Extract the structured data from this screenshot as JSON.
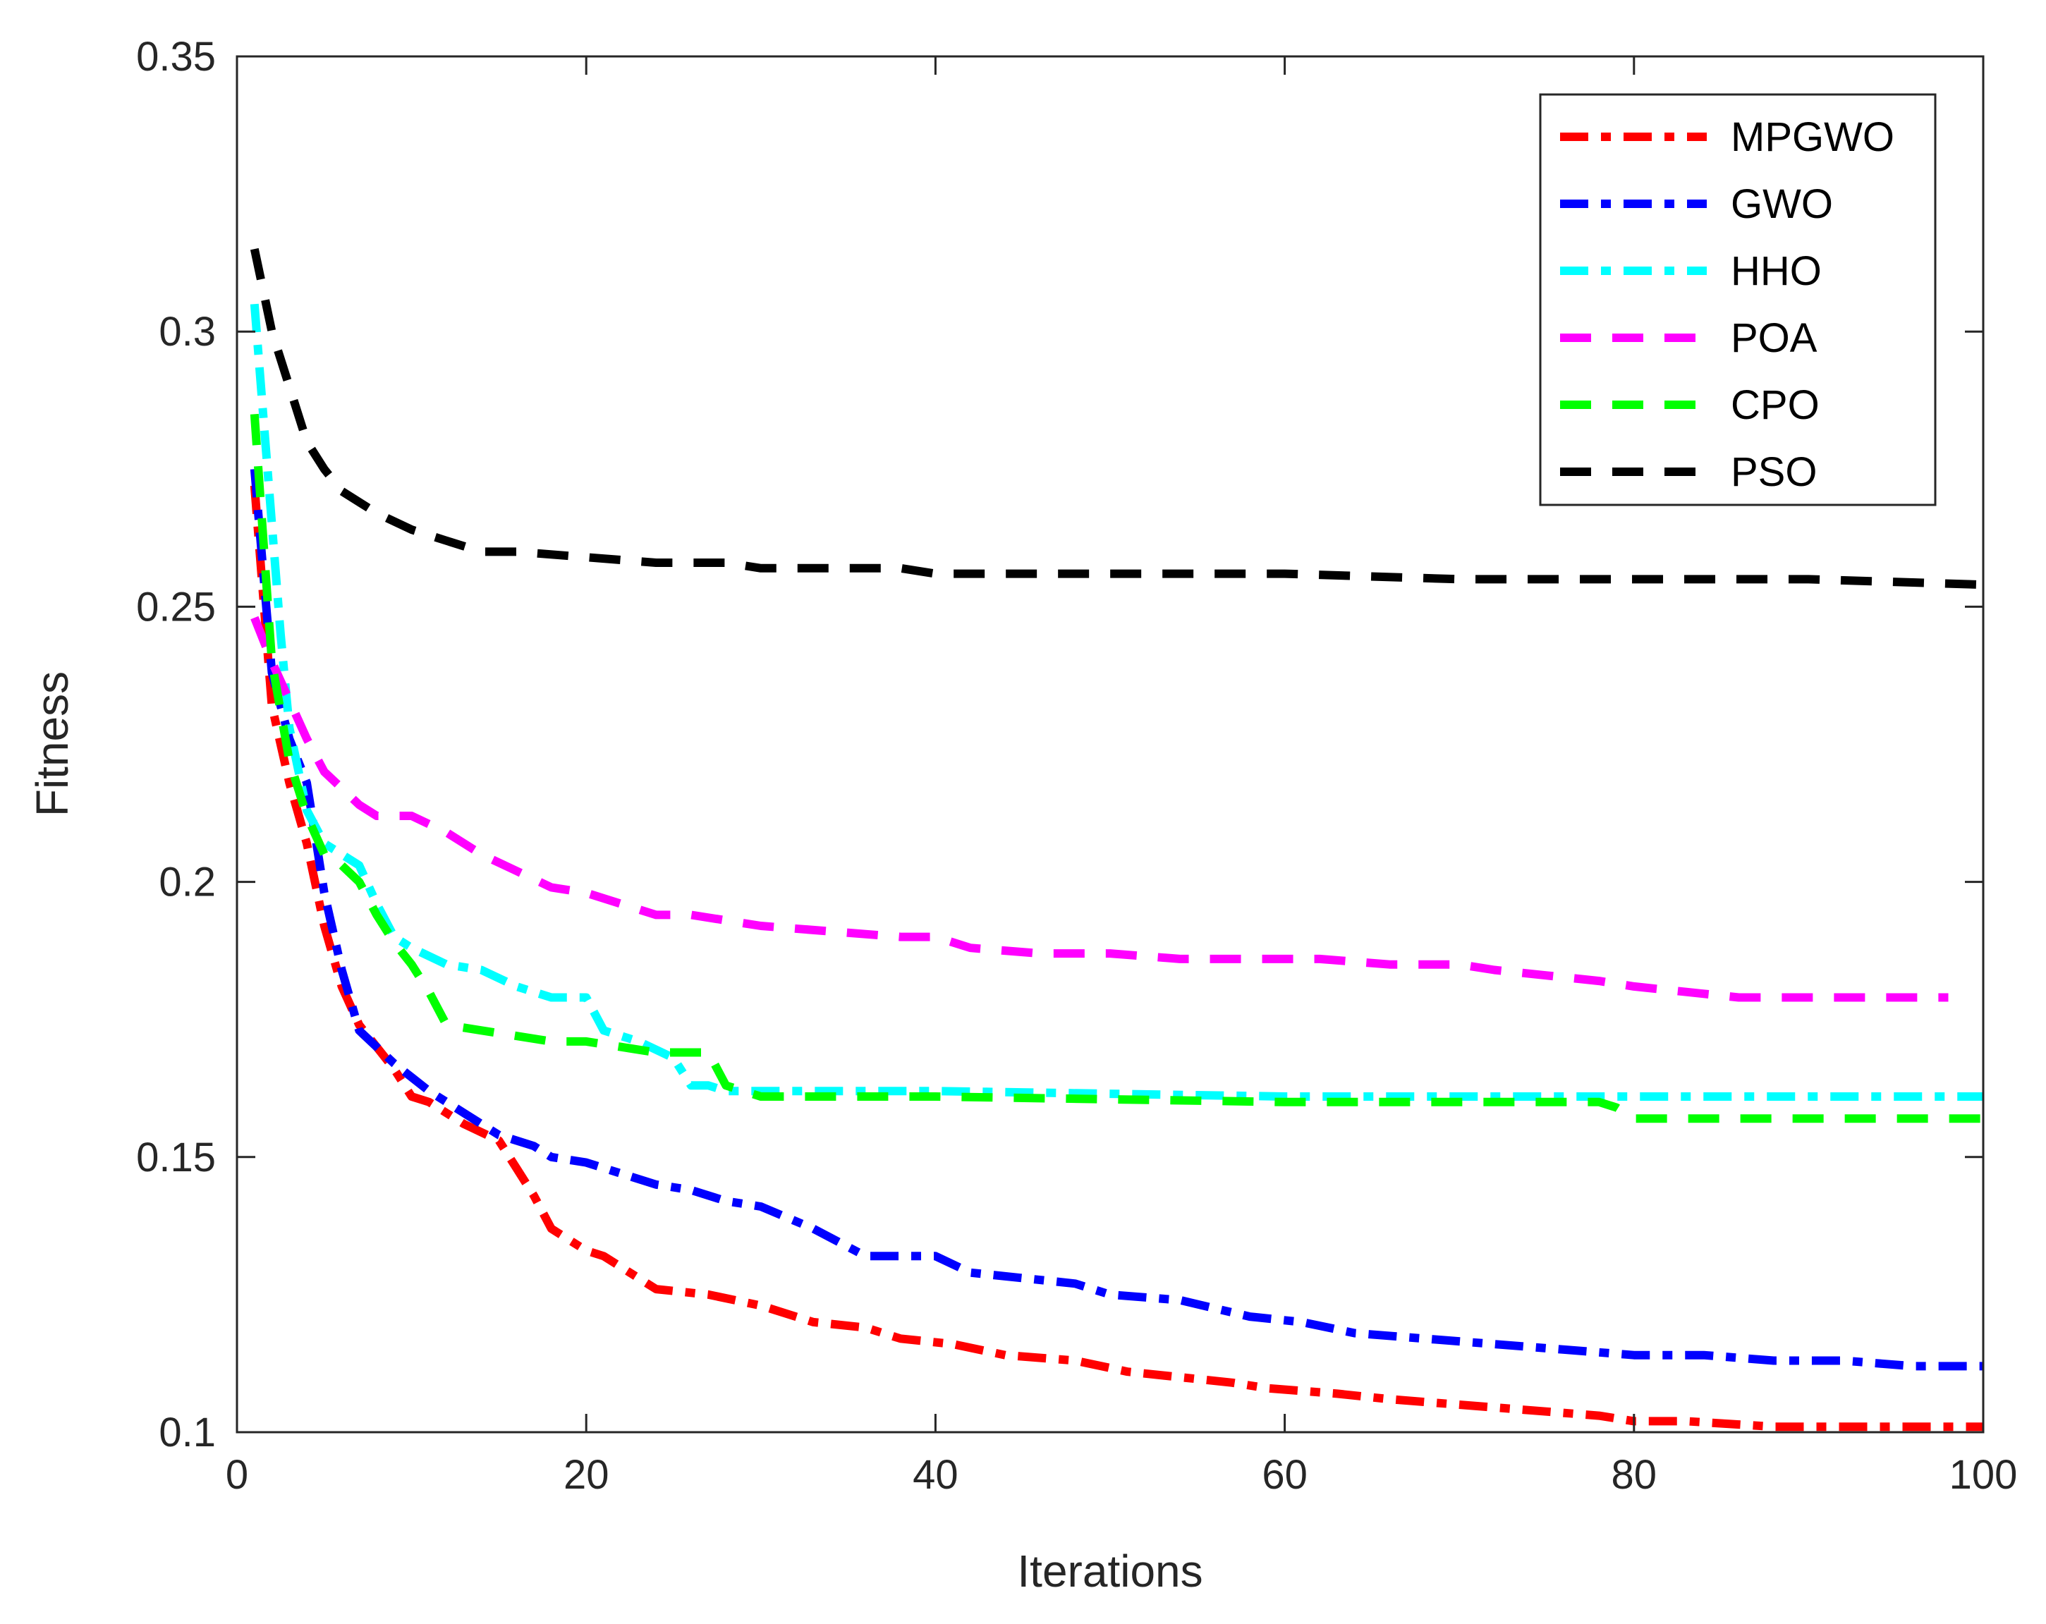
{
  "chart_data": {
    "type": "line",
    "title": "",
    "xlabel": "Iterations",
    "ylabel": "Fitness",
    "xlim": [
      0,
      100
    ],
    "ylim": [
      0.1,
      0.35
    ],
    "xticks": [
      0,
      20,
      40,
      60,
      80,
      100
    ],
    "xtick_labels": [
      "0",
      "20",
      "40",
      "60",
      "80",
      "100"
    ],
    "yticks": [
      0.1,
      0.15,
      0.2,
      0.25,
      0.3,
      0.35
    ],
    "ytick_labels": [
      "0.1",
      "0.15",
      "0.2",
      "0.25",
      "0.3",
      "0.35"
    ],
    "grid": false,
    "legend_position": "top-right",
    "series": [
      {
        "name": "MPGWO",
        "color": "#ff0000",
        "style": "dash-dot",
        "x": [
          1,
          2,
          3,
          4,
          5,
          6,
          7,
          8,
          9,
          10,
          11,
          13,
          15,
          16,
          17,
          18,
          20,
          21,
          23,
          24,
          27,
          30,
          33,
          36,
          38,
          41,
          44,
          48,
          51,
          54,
          57,
          59,
          63,
          66,
          70,
          74,
          78,
          80,
          83,
          88,
          92,
          96,
          100
        ],
        "y": [
          0.272,
          0.232,
          0.218,
          0.207,
          0.192,
          0.181,
          0.174,
          0.17,
          0.166,
          0.161,
          0.16,
          0.156,
          0.153,
          0.148,
          0.143,
          0.137,
          0.133,
          0.132,
          0.128,
          0.126,
          0.125,
          0.123,
          0.12,
          0.119,
          0.117,
          0.116,
          0.114,
          0.113,
          0.111,
          0.11,
          0.109,
          0.108,
          0.107,
          0.106,
          0.105,
          0.104,
          0.103,
          0.102,
          0.102,
          0.101,
          0.101,
          0.101,
          0.101
        ]
      },
      {
        "name": "GWO",
        "color": "#0000ff",
        "style": "dash-dot",
        "x": [
          1,
          2,
          3,
          4,
          5,
          6,
          7,
          9,
          11,
          13,
          15,
          17,
          18,
          20,
          22,
          24,
          26,
          28,
          30,
          33,
          36,
          40,
          42,
          45,
          48,
          50,
          54,
          58,
          61,
          64,
          68,
          72,
          76,
          80,
          84,
          88,
          92,
          96,
          100
        ],
        "y": [
          0.275,
          0.238,
          0.226,
          0.218,
          0.198,
          0.184,
          0.173,
          0.167,
          0.162,
          0.158,
          0.154,
          0.152,
          0.15,
          0.149,
          0.147,
          0.145,
          0.144,
          0.142,
          0.141,
          0.137,
          0.132,
          0.132,
          0.129,
          0.128,
          0.127,
          0.125,
          0.124,
          0.121,
          0.12,
          0.118,
          0.117,
          0.116,
          0.115,
          0.114,
          0.114,
          0.113,
          0.113,
          0.112,
          0.112
        ]
      },
      {
        "name": "HHO",
        "color": "#00ffff",
        "style": "dash-dot",
        "x": [
          1,
          1.5,
          2,
          2.5,
          3,
          4,
          5,
          7,
          8,
          9,
          10,
          12,
          14,
          16,
          18,
          20,
          21,
          23,
          25,
          26,
          27,
          28,
          40,
          60,
          80,
          100
        ],
        "y": [
          0.305,
          0.285,
          0.265,
          0.245,
          0.228,
          0.213,
          0.207,
          0.203,
          0.196,
          0.19,
          0.188,
          0.185,
          0.184,
          0.181,
          0.179,
          0.179,
          0.173,
          0.171,
          0.168,
          0.163,
          0.163,
          0.162,
          0.162,
          0.161,
          0.161,
          0.161
        ]
      },
      {
        "name": "POA",
        "color": "#ff00ff",
        "style": "dashed",
        "x": [
          1,
          2,
          3,
          4,
          5,
          6,
          7,
          8,
          10,
          12,
          14,
          16,
          18,
          20,
          22,
          24,
          26,
          28,
          30,
          34,
          38,
          40,
          42,
          46,
          50,
          54,
          58,
          62,
          66,
          70,
          72,
          75,
          78,
          80,
          83,
          86,
          90,
          94,
          98
        ],
        "y": [
          0.248,
          0.24,
          0.233,
          0.226,
          0.22,
          0.217,
          0.214,
          0.212,
          0.212,
          0.209,
          0.205,
          0.202,
          0.199,
          0.198,
          0.196,
          0.194,
          0.194,
          0.193,
          0.192,
          0.191,
          0.19,
          0.19,
          0.188,
          0.187,
          0.187,
          0.186,
          0.186,
          0.186,
          0.185,
          0.185,
          0.184,
          0.183,
          0.182,
          0.181,
          0.18,
          0.179,
          0.179,
          0.179,
          0.179
        ]
      },
      {
        "name": "CPO",
        "color": "#00ff00",
        "style": "dashed",
        "x": [
          1,
          2,
          3,
          4,
          5,
          6,
          7,
          8,
          9,
          10,
          11,
          12,
          14,
          16,
          18,
          20,
          22,
          24,
          26,
          27,
          28,
          30,
          40,
          60,
          77,
          78,
          79,
          80,
          100
        ],
        "y": [
          0.285,
          0.24,
          0.222,
          0.212,
          0.205,
          0.203,
          0.2,
          0.194,
          0.189,
          0.185,
          0.18,
          0.174,
          0.173,
          0.172,
          0.171,
          0.171,
          0.17,
          0.169,
          0.169,
          0.169,
          0.163,
          0.161,
          0.161,
          0.16,
          0.16,
          0.16,
          0.159,
          0.157,
          0.157
        ]
      },
      {
        "name": "PSO",
        "color": "#000000",
        "style": "dashed",
        "x": [
          1,
          2,
          3,
          4,
          5,
          6,
          8,
          10,
          12,
          14,
          16,
          20,
          24,
          28,
          30,
          34,
          38,
          40,
          44,
          50,
          60,
          70,
          80,
          90,
          100
        ],
        "y": [
          0.315,
          0.3,
          0.29,
          0.28,
          0.275,
          0.271,
          0.267,
          0.264,
          0.262,
          0.26,
          0.26,
          0.259,
          0.258,
          0.258,
          0.257,
          0.257,
          0.257,
          0.256,
          0.256,
          0.256,
          0.256,
          0.255,
          0.255,
          0.255,
          0.254
        ]
      }
    ]
  }
}
